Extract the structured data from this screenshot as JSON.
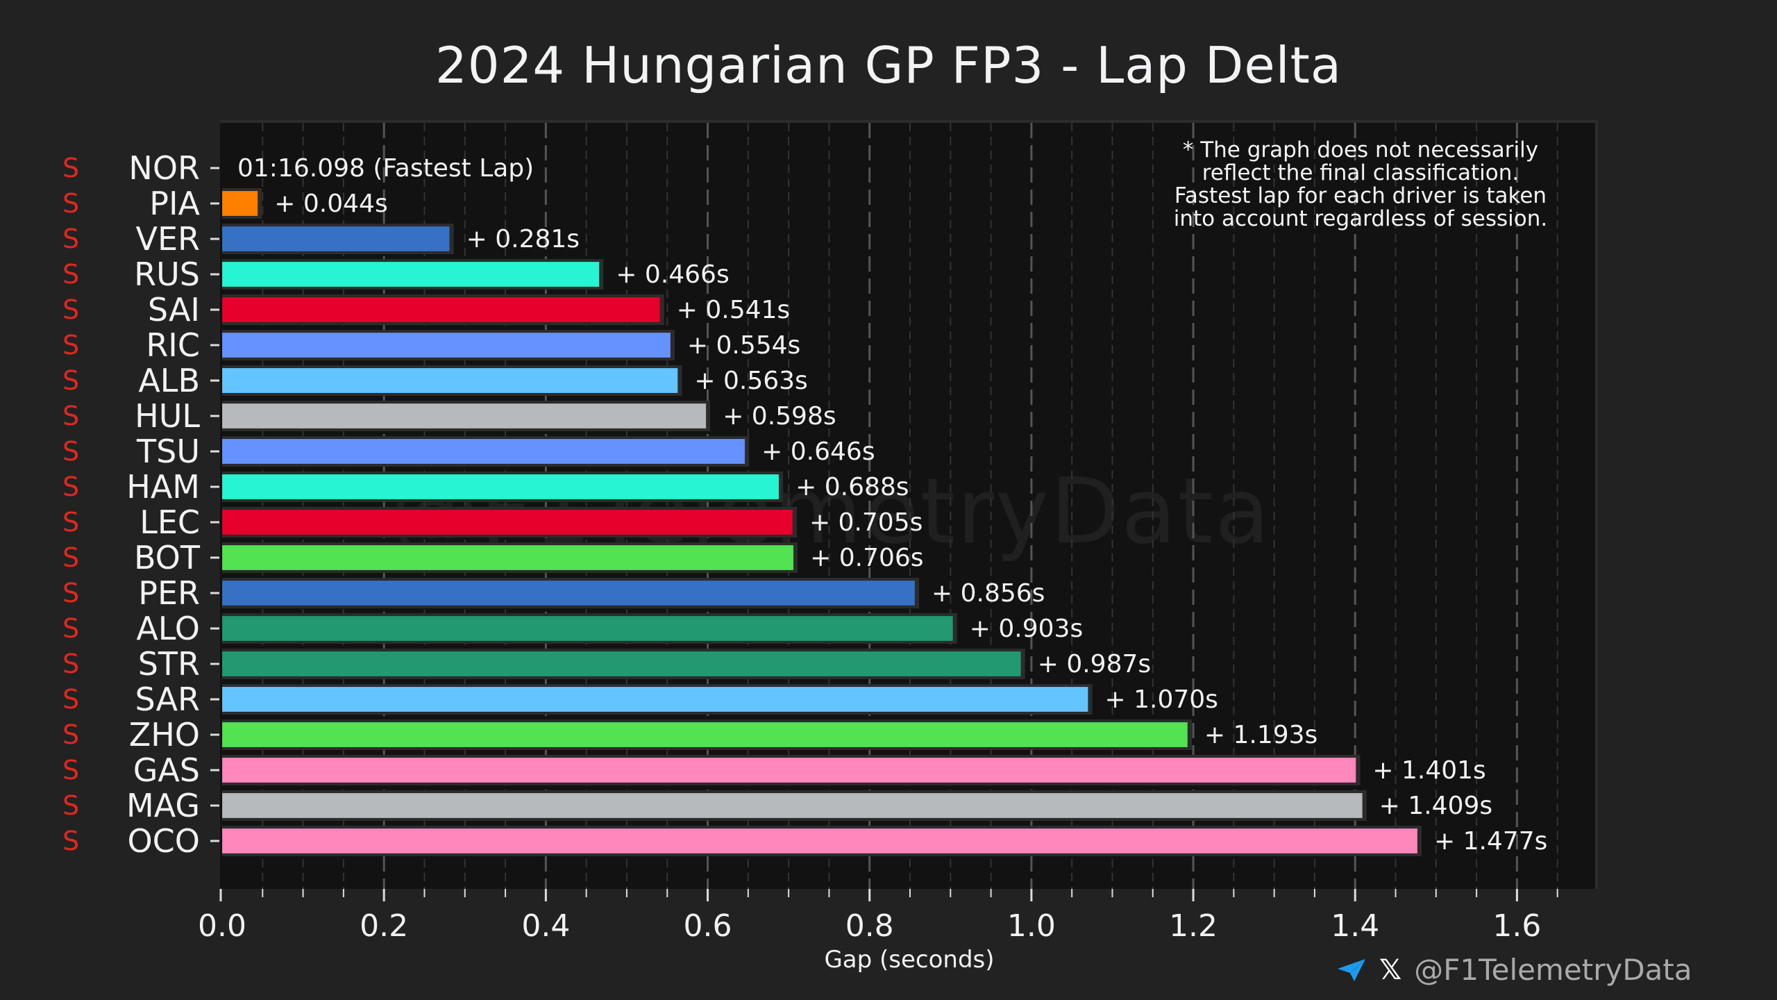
{
  "title": "2024 Hungarian GP FP3 - Lap Delta",
  "note": [
    "* The graph does not necessarily",
    "reflect the final classification.",
    "Fastest lap for each driver is taken",
    "into account regardless of session."
  ],
  "watermark": "@F1TelemetryData",
  "footer": {
    "telegram_icon": "telegram-icon",
    "x_icon_glyph": "𝕏",
    "handle": "@F1TelemetryData",
    "telegram_color": "#1d9bf0"
  },
  "chart_data": {
    "type": "bar",
    "orientation": "horizontal",
    "title": "2024 Hungarian GP FP3 - Lap Delta",
    "xlabel": "Gap (seconds)",
    "ylabel": "",
    "xlim": [
      0,
      1.7
    ],
    "xticks": [
      "0.0",
      "0.2",
      "0.4",
      "0.6",
      "0.8",
      "1.0",
      "1.2",
      "1.4",
      "1.6"
    ],
    "grid": "vertical dashed",
    "fastest_lap_label": "01:16.098 (Fastest Lap)",
    "tyre_color": "#e0281e",
    "drivers": [
      {
        "driver": "NOR",
        "tyre": "S",
        "gap": 0.0,
        "label": "01:16.098 (Fastest Lap)",
        "color": "#ff8000"
      },
      {
        "driver": "PIA",
        "tyre": "S",
        "gap": 0.044,
        "label": "+ 0.044s",
        "color": "#ff8000"
      },
      {
        "driver": "VER",
        "tyre": "S",
        "gap": 0.281,
        "label": "+ 0.281s",
        "color": "#3671c6"
      },
      {
        "driver": "RUS",
        "tyre": "S",
        "gap": 0.466,
        "label": "+ 0.466s",
        "color": "#27f4d2"
      },
      {
        "driver": "SAI",
        "tyre": "S",
        "gap": 0.541,
        "label": "+ 0.541s",
        "color": "#e8002d"
      },
      {
        "driver": "RIC",
        "tyre": "S",
        "gap": 0.554,
        "label": "+ 0.554s",
        "color": "#6692ff"
      },
      {
        "driver": "ALB",
        "tyre": "S",
        "gap": 0.563,
        "label": "+ 0.563s",
        "color": "#64c4ff"
      },
      {
        "driver": "HUL",
        "tyre": "S",
        "gap": 0.598,
        "label": "+ 0.598s",
        "color": "#b6babd"
      },
      {
        "driver": "TSU",
        "tyre": "S",
        "gap": 0.646,
        "label": "+ 0.646s",
        "color": "#6692ff"
      },
      {
        "driver": "HAM",
        "tyre": "S",
        "gap": 0.688,
        "label": "+ 0.688s",
        "color": "#27f4d2"
      },
      {
        "driver": "LEC",
        "tyre": "S",
        "gap": 0.705,
        "label": "+ 0.705s",
        "color": "#e8002d"
      },
      {
        "driver": "BOT",
        "tyre": "S",
        "gap": 0.706,
        "label": "+ 0.706s",
        "color": "#52e252"
      },
      {
        "driver": "PER",
        "tyre": "S",
        "gap": 0.856,
        "label": "+ 0.856s",
        "color": "#3671c6"
      },
      {
        "driver": "ALO",
        "tyre": "S",
        "gap": 0.903,
        "label": "+ 0.903s",
        "color": "#229971"
      },
      {
        "driver": "STR",
        "tyre": "S",
        "gap": 0.987,
        "label": "+ 0.987s",
        "color": "#229971"
      },
      {
        "driver": "SAR",
        "tyre": "S",
        "gap": 1.07,
        "label": "+ 1.070s",
        "color": "#64c4ff"
      },
      {
        "driver": "ZHO",
        "tyre": "S",
        "gap": 1.193,
        "label": "+ 1.193s",
        "color": "#52e252"
      },
      {
        "driver": "GAS",
        "tyre": "S",
        "gap": 1.401,
        "label": "+ 1.401s",
        "color": "#ff87bc"
      },
      {
        "driver": "MAG",
        "tyre": "S",
        "gap": 1.409,
        "label": "+ 1.409s",
        "color": "#b6babd"
      },
      {
        "driver": "OCO",
        "tyre": "S",
        "gap": 1.477,
        "label": "+ 1.477s",
        "color": "#ff87bc"
      }
    ]
  }
}
